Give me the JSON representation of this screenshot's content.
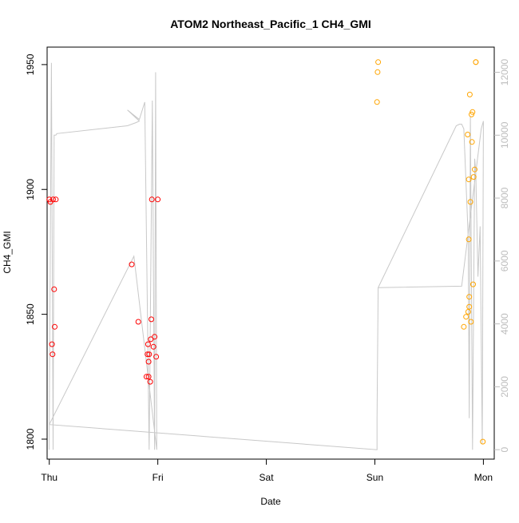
{
  "chart_data": {
    "type": "scatter",
    "title": "ATOM2 Northeast_Pacific_1 CH4_GMI",
    "xlabel": "Date",
    "ylabel": "CH4_GMI",
    "x_axis": {
      "kind": "date",
      "range_days": [
        -0.02,
        4.1
      ],
      "ticks": [
        {
          "label": "Thu",
          "day": 0
        },
        {
          "label": "Fri",
          "day": 1
        },
        {
          "label": "Sat",
          "day": 2
        },
        {
          "label": "Sun",
          "day": 3
        },
        {
          "label": "Mon",
          "day": 4
        }
      ]
    },
    "y_axis": {
      "range": [
        1792,
        1957
      ],
      "ticks": [
        1800,
        1850,
        1900,
        1950
      ]
    },
    "y2_axis": {
      "range": [
        -300,
        12800
      ],
      "ticks": [
        0,
        2000,
        4000,
        6000,
        8000,
        10000,
        12000
      ],
      "color": "#bdbdbd"
    },
    "colors": {
      "series_red": "#ff0000",
      "series_orange": "#ffa500",
      "altitude_line": "#c8c8c8"
    },
    "series": [
      {
        "marker": "open-circle",
        "color": "#ff0000",
        "x": [
          0.0,
          0.01,
          0.03,
          0.06,
          0.045,
          0.05,
          0.025,
          0.035,
          0.76,
          0.82,
          0.895,
          0.91,
          0.905,
          0.915,
          0.92,
          0.915,
          0.93,
          0.935,
          0.94,
          0.945,
          0.96,
          0.97,
          0.985,
          1.0
        ],
        "y": [
          1896,
          1895,
          1834,
          1896,
          1860,
          1845,
          1838,
          1896,
          1870,
          1847,
          1825,
          1838,
          1834,
          1831,
          1834,
          1825,
          1823,
          1840,
          1848,
          1896,
          1837,
          1841,
          1833,
          1896
        ]
      },
      {
        "marker": "open-circle",
        "color": "#ffa500",
        "x": [
          3.03,
          3.025,
          3.02,
          3.82,
          3.84,
          3.87,
          3.855,
          3.865,
          3.88,
          3.895,
          3.9,
          3.91,
          3.92,
          3.93,
          3.875,
          3.89,
          3.905,
          3.865,
          3.86,
          3.87,
          3.885,
          3.995,
          3.93
        ],
        "y": [
          1951,
          1947,
          1935,
          1845,
          1849,
          1857,
          1922,
          1904,
          1895,
          1919,
          1931,
          1905,
          1908,
          1951,
          1938,
          1930,
          1862,
          1880,
          1851,
          1853,
          1847,
          1799,
          1951
        ]
      }
    ],
    "secondary_series": {
      "type": "line",
      "axis": "y2",
      "color": "#c8c8c8",
      "x": [
        0.0,
        0.0,
        0.02,
        0.035,
        0.045,
        0.06,
        0.07,
        0.72,
        0.8,
        0.83,
        0.72,
        0.83,
        0.88,
        0.92,
        0.95,
        0.97,
        0.98,
        0.99,
        0.78,
        0.0,
        3.02,
        3.02,
        3.03,
        3.03,
        3.75,
        3.78,
        3.8,
        3.82,
        3.86,
        3.87,
        3.88,
        3.9,
        3.92,
        3.93,
        3.95,
        3.97,
        3.99,
        4.0,
        3.98,
        3.8,
        3.03
      ],
      "y": [
        0,
        800,
        12300,
        0,
        10000,
        10000,
        10050,
        10300,
        10400,
        10450,
        10800,
        10500,
        11050,
        0,
        11100,
        0,
        12000,
        0,
        6150,
        800,
        0,
        1000,
        5150,
        5150,
        10300,
        10350,
        10350,
        10200,
        6750,
        1000,
        10600,
        0,
        9250,
        8800,
        5500,
        7100,
        200,
        10450,
        10200,
        5200,
        5150
      ]
    }
  }
}
